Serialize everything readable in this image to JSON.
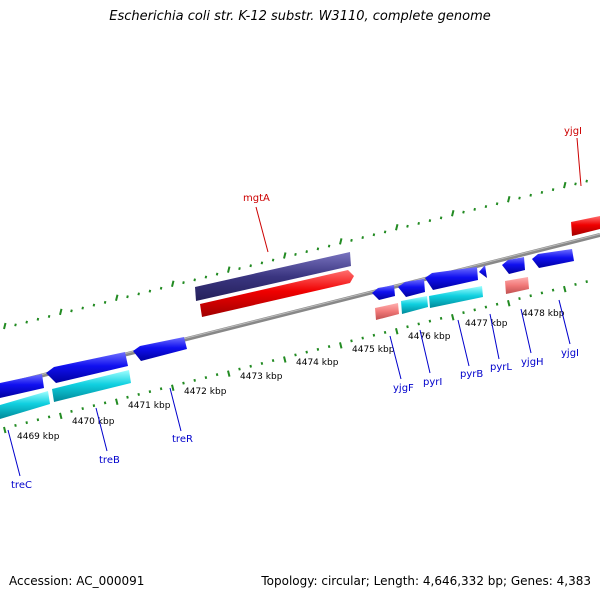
{
  "title": "Escherichia coli str. K-12 substr. W3110, complete genome",
  "footer": {
    "accession": "Accession: AC_000091",
    "topology": "Topology: circular; Length: 4,646,332 bp; Genes: 4,383"
  },
  "scale_labels": [
    "4469 kbp",
    "4470 kbp",
    "4471 kbp",
    "4472 kbp",
    "4473 kbp",
    "4474 kbp",
    "4475 kbp",
    "4476 kbp",
    "4477 kbp",
    "4478 kbp"
  ],
  "genes": {
    "mgtA": "mgtA",
    "yjgI_top": "yjgI",
    "treC": "treC",
    "treB": "treB",
    "treR": "treR",
    "yjgF": "yjgF",
    "pyrI": "pyrI",
    "pyrB": "pyrB",
    "pyrL": "pyrL",
    "yjgH": "yjgH",
    "yjgI_bottom": "yjgI"
  },
  "colors": {
    "forward_gene": "#ff0000",
    "reverse_gene": "#0000ee",
    "forward_cds_tint": "#f08080",
    "reverse_cds_tint": "#00c8d8",
    "purple_feature": "#3a3580",
    "backbone": "#888888",
    "ticks": "#228b22",
    "forward_label": "#cc0000",
    "reverse_label": "#0000cc"
  }
}
